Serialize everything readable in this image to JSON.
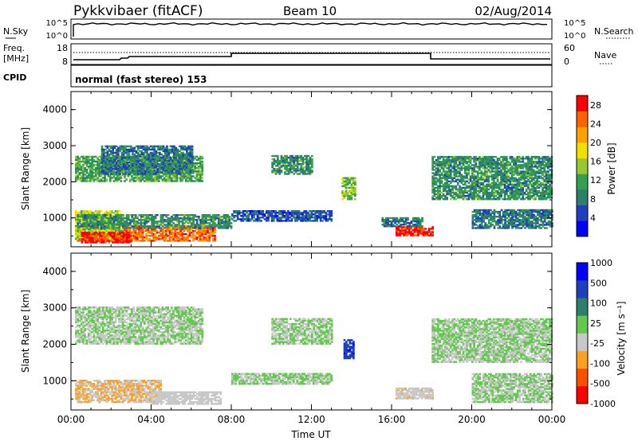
{
  "header": {
    "radar": "Pykkvibaer (fitACF)",
    "beam": "Beam 10",
    "date": "02/Aug/2014"
  },
  "noise_panel": {
    "left_label": "N.Sky",
    "right_label": "N.Search",
    "left_ticks": [
      "10^5",
      "10^0"
    ],
    "right_ticks": [
      "10^5",
      "10^0"
    ]
  },
  "freq_panel": {
    "left_label_1": "Freq.",
    "left_label_2": "[MHz]",
    "right_label": "Nave",
    "left_ticks": [
      "18",
      "8"
    ],
    "right_ticks": [
      "60",
      "0"
    ]
  },
  "cpid_panel": {
    "label": "CPID",
    "text": "normal (fast stereo) 153"
  },
  "colors": {
    "power": [
      "#0000ff",
      "#1f3fbf",
      "#2e7f6a",
      "#32a050",
      "#96c832",
      "#f0e000",
      "#ffa000",
      "#ff6000",
      "#ff0000"
    ],
    "velocity": [
      "#ff0000",
      "#ff5000",
      "#ffa020",
      "#c8c8c8",
      "#64c850",
      "#2e7f6a",
      "#1f3fbf",
      "#0000ff"
    ]
  },
  "chart_data": [
    {
      "type": "heatmap",
      "title": "",
      "ylabel": "Slant Range [km]",
      "ylim": [
        200,
        4500
      ],
      "xlim": [
        0,
        24
      ],
      "y_ticks": [
        "1000",
        "2000",
        "3000",
        "4000"
      ],
      "x_ticks": [
        "00:00",
        "04:00",
        "08:00",
        "12:00",
        "16:00",
        "20:00",
        "00:00"
      ],
      "colorbar": {
        "label": "Power [dB]",
        "ticks": [
          "4",
          "8",
          "12",
          "16",
          "20",
          "24",
          "28"
        ],
        "range": [
          0,
          30
        ]
      },
      "regions": [
        {
          "t0": 0.2,
          "t1": 7.2,
          "r0": 350,
          "r1": 800,
          "value": 24
        },
        {
          "t0": 0.2,
          "t1": 2.5,
          "r0": 400,
          "r1": 1200,
          "value": 16
        },
        {
          "t0": 0.5,
          "t1": 3.0,
          "r0": 300,
          "r1": 600,
          "value": 28
        },
        {
          "t0": 0.3,
          "t1": 8.0,
          "r0": 700,
          "r1": 1100,
          "value": 10
        },
        {
          "t0": 0.2,
          "t1": 6.5,
          "r0": 2000,
          "r1": 2700,
          "value": 12
        },
        {
          "t0": 1.5,
          "t1": 6.0,
          "r0": 2200,
          "r1": 3000,
          "value": 8
        },
        {
          "t0": 8.0,
          "t1": 13.0,
          "r0": 900,
          "r1": 1200,
          "value": 6
        },
        {
          "t0": 10.0,
          "t1": 12.0,
          "r0": 2200,
          "r1": 2700,
          "value": 10
        },
        {
          "t0": 13.5,
          "t1": 14.2,
          "r0": 1500,
          "r1": 2100,
          "value": 14
        },
        {
          "t0": 16.2,
          "t1": 18.0,
          "r0": 500,
          "r1": 750,
          "value": 28
        },
        {
          "t0": 15.5,
          "t1": 17.5,
          "r0": 750,
          "r1": 1000,
          "value": 8
        },
        {
          "t0": 18.0,
          "t1": 24.0,
          "r0": 1500,
          "r1": 2700,
          "value": 10
        },
        {
          "t0": 20.0,
          "t1": 24.0,
          "r0": 700,
          "r1": 1200,
          "value": 8
        }
      ]
    },
    {
      "type": "heatmap",
      "title": "",
      "ylabel": "Slant Range [km]",
      "xlabel": "Time UT",
      "ylim": [
        200,
        4500
      ],
      "xlim": [
        0,
        24
      ],
      "y_ticks": [
        "1000",
        "2000",
        "3000",
        "4000"
      ],
      "x_ticks": [
        "00:00",
        "04:00",
        "08:00",
        "12:00",
        "16:00",
        "20:00",
        "00:00"
      ],
      "colorbar": {
        "label": "Velocity [m s⁻¹]",
        "ticks": [
          "1000",
          "500",
          "100",
          "25",
          "-25",
          "-100",
          "-500",
          "-1000"
        ],
        "range": [
          -1200,
          1200
        ]
      },
      "regions": [
        {
          "t0": 0.2,
          "t1": 6.5,
          "r0": 2000,
          "r1": 3000,
          "value": 0
        },
        {
          "t0": 0.2,
          "t1": 4.5,
          "r0": 400,
          "r1": 1000,
          "value": -300
        },
        {
          "t0": 4.0,
          "t1": 7.5,
          "r0": 350,
          "r1": 700,
          "value": -150
        },
        {
          "t0": 8.0,
          "t1": 13.0,
          "r0": 900,
          "r1": 1200,
          "value": 0
        },
        {
          "t0": 10.0,
          "t1": 13.0,
          "r0": 2000,
          "r1": 2700,
          "value": 0
        },
        {
          "t0": 13.6,
          "t1": 14.1,
          "r0": 1600,
          "r1": 2100,
          "value": 800
        },
        {
          "t0": 16.2,
          "t1": 18.0,
          "r0": 500,
          "r1": 800,
          "value": -200
        },
        {
          "t0": 18.0,
          "t1": 24.0,
          "r0": 1500,
          "r1": 2700,
          "value": 0
        },
        {
          "t0": 20.0,
          "t1": 24.0,
          "r0": 400,
          "r1": 1200,
          "value": 0
        }
      ]
    }
  ]
}
